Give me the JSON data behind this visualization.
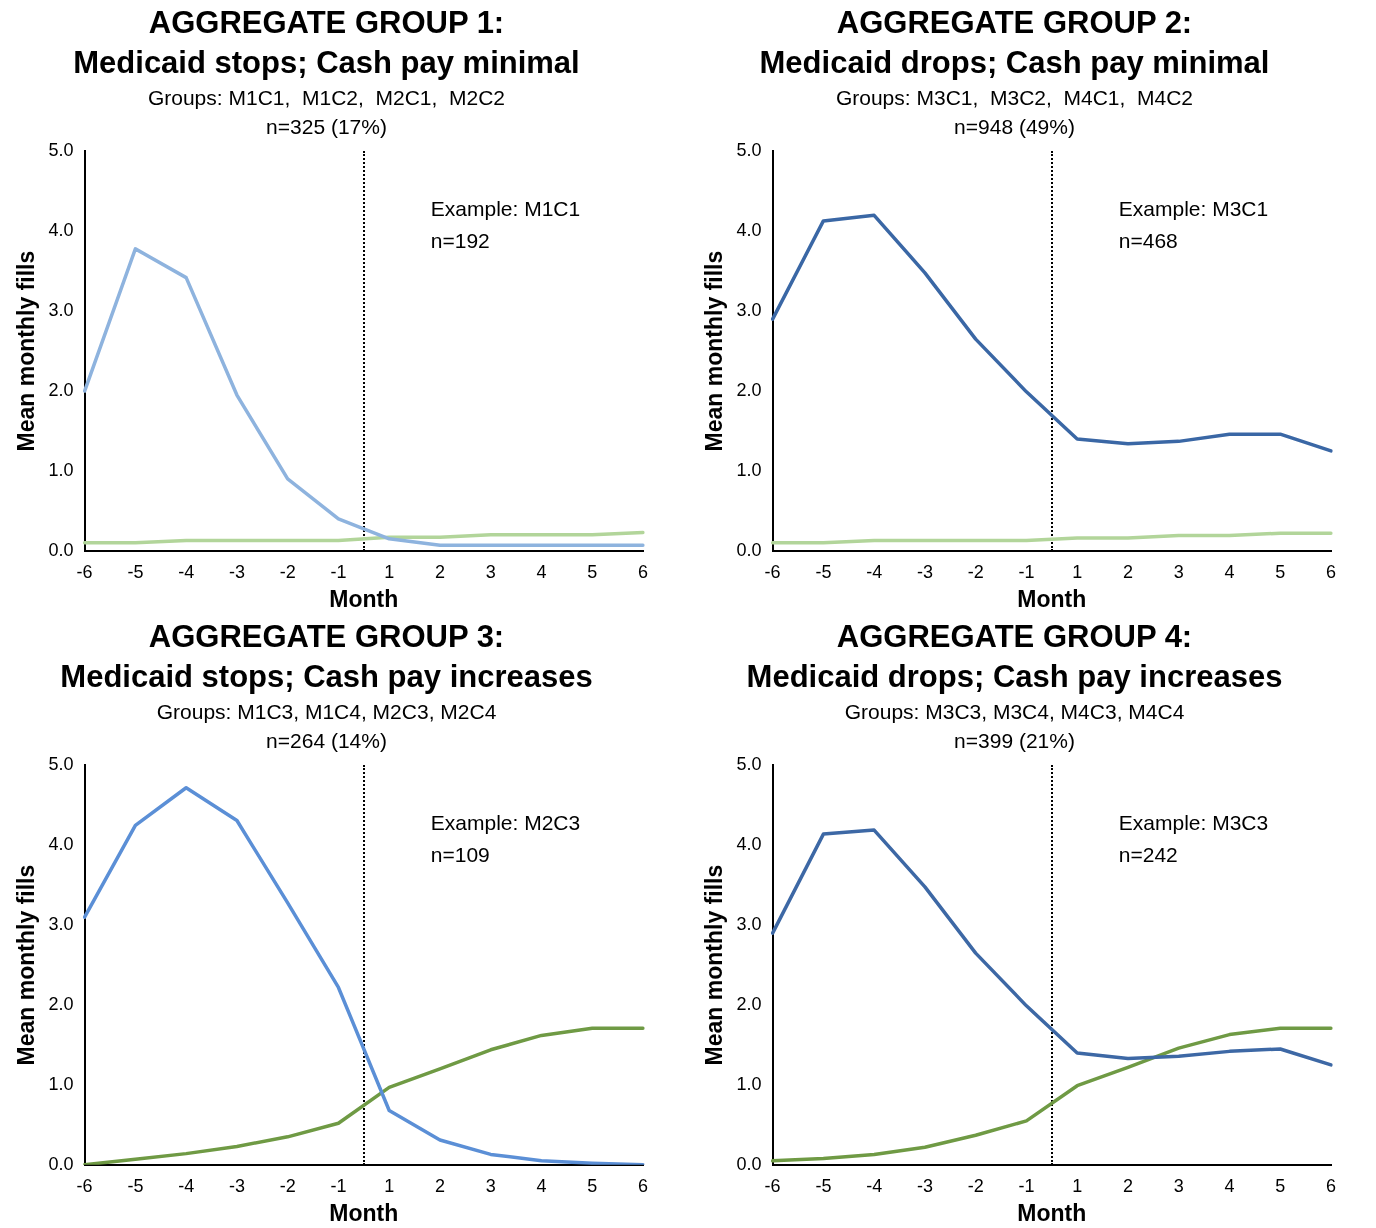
{
  "chart_data": [
    {
      "type": "line",
      "title": "AGGREGATE GROUP 1:\nMedicaid stops; Cash pay minimal",
      "subtitle": "Groups: M1C1,  M1C2,  M2C1,  M2C2\nn=325 (17%)",
      "xlabel": "Month",
      "ylabel": "Mean monthly fills",
      "categories": [
        "-6",
        "-5",
        "-4",
        "-3",
        "-2",
        "-1",
        "1",
        "2",
        "3",
        "4",
        "5",
        "6"
      ],
      "series": [
        {
          "color": "#8eb3de",
          "values": [
            2.0,
            3.78,
            3.42,
            1.95,
            0.9,
            0.4,
            0.15,
            0.07,
            0.07,
            0.07,
            0.07,
            0.07
          ]
        },
        {
          "color": "#b2d59a",
          "values": [
            0.1,
            0.1,
            0.13,
            0.13,
            0.13,
            0.13,
            0.17,
            0.17,
            0.2,
            0.2,
            0.2,
            0.23
          ]
        }
      ],
      "ylim": [
        0,
        5
      ],
      "yticks": [
        {
          "value": 0,
          "label": "0.0"
        },
        {
          "value": 1,
          "label": "1.0"
        },
        {
          "value": 2,
          "label": "2.0"
        },
        {
          "value": 3,
          "label": "3.0"
        },
        {
          "value": 4,
          "label": "4.0"
        },
        {
          "value": 5,
          "label": "5.0"
        }
      ],
      "annotations": [
        "Example: M1C1",
        "n=192"
      ],
      "grid": false,
      "legend": false,
      "marker": "none",
      "line_style": "solid"
    },
    {
      "type": "line",
      "title": "AGGREGATE GROUP 2:\nMedicaid drops; Cash pay minimal",
      "subtitle": "Groups: M3C1,  M3C2,  M4C1,  M4C2\nn=948 (49%)",
      "xlabel": "Month",
      "ylabel": "Mean monthly fills",
      "categories": [
        "-6",
        "-5",
        "-4",
        "-3",
        "-2",
        "-1",
        "1",
        "2",
        "3",
        "4",
        "5",
        "6"
      ],
      "series": [
        {
          "color": "#3a67a5",
          "values": [
            2.9,
            4.13,
            4.2,
            3.48,
            2.65,
            1.99,
            1.4,
            1.34,
            1.37,
            1.46,
            1.46,
            1.25
          ]
        },
        {
          "color": "#b2d59a",
          "values": [
            0.1,
            0.1,
            0.13,
            0.13,
            0.13,
            0.13,
            0.16,
            0.16,
            0.19,
            0.19,
            0.22,
            0.22
          ]
        }
      ],
      "ylim": [
        0,
        5
      ],
      "yticks": [
        {
          "value": 0,
          "label": "0.0"
        },
        {
          "value": 1,
          "label": "1.0"
        },
        {
          "value": 2,
          "label": "2.0"
        },
        {
          "value": 3,
          "label": "3.0"
        },
        {
          "value": 4,
          "label": "4.0"
        },
        {
          "value": 5,
          "label": "5.0"
        }
      ],
      "annotations": [
        "Example: M3C1",
        "n=468"
      ],
      "grid": false,
      "legend": false,
      "marker": "none",
      "line_style": "solid"
    },
    {
      "type": "line",
      "title": "AGGREGATE GROUP 3:\nMedicaid stops; Cash pay increases",
      "subtitle": "Groups: M1C3, M1C4, M2C3, M2C4\nn=264 (14%)",
      "xlabel": "Month",
      "ylabel": "Mean monthly fills",
      "categories": [
        "-6",
        "-5",
        "-4",
        "-3",
        "-2",
        "-1",
        "1",
        "2",
        "3",
        "4",
        "5",
        "6"
      ],
      "series": [
        {
          "color": "#5b8fd6",
          "values": [
            3.1,
            4.25,
            4.72,
            4.31,
            3.28,
            2.22,
            0.68,
            0.31,
            0.13,
            0.05,
            0.02,
            0.0
          ]
        },
        {
          "color": "#6f9a44",
          "values": [
            0.0,
            0.07,
            0.14,
            0.23,
            0.35,
            0.52,
            0.97,
            1.2,
            1.44,
            1.62,
            1.71,
            1.71
          ]
        }
      ],
      "ylim": [
        0,
        5
      ],
      "yticks": [
        {
          "value": 0,
          "label": "0.0"
        },
        {
          "value": 1,
          "label": "1.0"
        },
        {
          "value": 2,
          "label": "2.0"
        },
        {
          "value": 3,
          "label": "3.0"
        },
        {
          "value": 4,
          "label": "4.0"
        },
        {
          "value": 5,
          "label": "5.0"
        }
      ],
      "annotations": [
        "Example: M2C3",
        "n=109"
      ],
      "grid": false,
      "legend": false,
      "marker": "none",
      "line_style": "solid"
    },
    {
      "type": "line",
      "title": "AGGREGATE GROUP 4:\nMedicaid drops; Cash pay increases",
      "subtitle": "Groups: M3C3, M3C4, M4C3, M4C4\nn=399 (21%)",
      "xlabel": "Month",
      "ylabel": "Mean monthly fills",
      "categories": [
        "-6",
        "-5",
        "-4",
        "-3",
        "-2",
        "-1",
        "1",
        "2",
        "3",
        "4",
        "5",
        "6"
      ],
      "series": [
        {
          "color": "#3d68a5",
          "values": [
            2.9,
            4.14,
            4.19,
            3.48,
            2.65,
            1.99,
            1.4,
            1.33,
            1.36,
            1.42,
            1.45,
            1.25
          ]
        },
        {
          "color": "#6f9a44",
          "values": [
            0.05,
            0.08,
            0.13,
            0.22,
            0.37,
            0.55,
            0.99,
            1.22,
            1.46,
            1.63,
            1.71,
            1.71
          ]
        }
      ],
      "ylim": [
        0,
        5
      ],
      "yticks": [
        {
          "value": 0,
          "label": "0.0"
        },
        {
          "value": 1,
          "label": "1.0"
        },
        {
          "value": 2,
          "label": "2.0"
        },
        {
          "value": 3,
          "label": "3.0"
        },
        {
          "value": 4,
          "label": "4.0"
        },
        {
          "value": 5,
          "label": "5.0"
        }
      ],
      "annotations": [
        "Example: M3C3",
        "n=242"
      ],
      "grid": false,
      "legend": false,
      "marker": "none",
      "line_style": "solid"
    }
  ]
}
